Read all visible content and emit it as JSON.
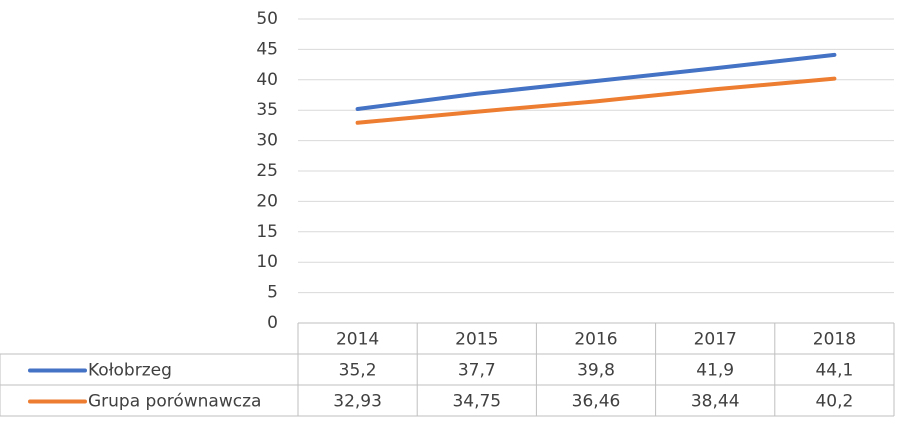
{
  "chart_data": {
    "type": "line",
    "categories": [
      "2014",
      "2015",
      "2016",
      "2017",
      "2018"
    ],
    "series": [
      {
        "name": "Kołobrzeg",
        "color": "#4472c4",
        "values": [
          35.2,
          37.7,
          39.8,
          41.9,
          44.1
        ],
        "value_labels": [
          "35,2",
          "37,7",
          "39,8",
          "41,9",
          "44,1"
        ]
      },
      {
        "name": "Grupa porównawcza",
        "color": "#ed7d31",
        "values": [
          32.93,
          34.75,
          36.46,
          38.44,
          40.2
        ],
        "value_labels": [
          "32,93",
          "34,75",
          "36,46",
          "38,44",
          "40,2"
        ]
      }
    ],
    "ylim": [
      0,
      50
    ],
    "yticks": [
      0,
      5,
      10,
      15,
      20,
      25,
      30,
      35,
      40,
      45,
      50
    ],
    "grid": true,
    "data_table": true
  }
}
